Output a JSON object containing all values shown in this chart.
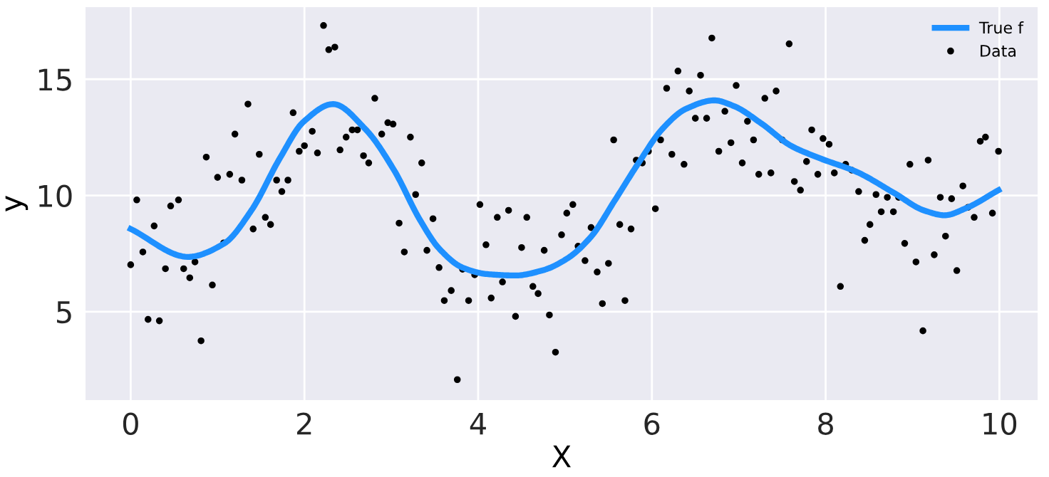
{
  "chart_data": {
    "type": "line",
    "xlabel": "X",
    "ylabel": "y",
    "xlim": [
      -0.52,
      10.44
    ],
    "ylim": [
      1.2,
      18.1
    ],
    "xticks": [
      0,
      2,
      4,
      6,
      8,
      10
    ],
    "yticks": [
      5,
      10,
      15
    ],
    "grid": true,
    "legend": "top right",
    "series": [
      {
        "name": "True f",
        "color": "#1e90ff",
        "marker": "none",
        "line_style": "solid",
        "x": [
          0,
          0.66,
          1.07,
          1.39,
          1.72,
          1.99,
          2.33,
          2.7,
          3.03,
          3.33,
          3.55,
          3.82,
          4.1,
          4.43,
          4.75,
          5.03,
          5.3,
          5.57,
          5.85,
          6.12,
          6.39,
          6.72,
          6.94,
          7.27,
          7.6,
          7.92,
          8.36,
          8.8,
          9.13,
          9.37,
          9.62,
          9.99
        ],
        "values": [
          8.56,
          7.36,
          7.92,
          9.36,
          11.62,
          13.17,
          13.93,
          12.86,
          11.1,
          8.95,
          7.72,
          6.9,
          6.62,
          6.56,
          6.79,
          7.3,
          8.23,
          9.77,
          11.42,
          12.86,
          13.72,
          14.09,
          13.85,
          13.07,
          12.14,
          11.62,
          11.01,
          10.08,
          9.36,
          9.15,
          9.46,
          10.23
        ]
      },
      {
        "name": "Data",
        "type": "scatter",
        "color": "#000000",
        "marker": "circle",
        "x": [
          0.0,
          0.07,
          0.14,
          0.2,
          0.27,
          0.33,
          0.4,
          0.46,
          0.55,
          0.61,
          0.68,
          0.74,
          0.81,
          0.87,
          0.94,
          1.0,
          1.07,
          1.14,
          1.2,
          1.28,
          1.35,
          1.41,
          1.48,
          1.55,
          1.61,
          1.68,
          1.74,
          1.81,
          1.87,
          1.94,
          2.0,
          2.09,
          2.15,
          2.22,
          2.28,
          2.35,
          2.41,
          2.48,
          2.55,
          2.61,
          2.68,
          2.74,
          2.81,
          2.89,
          2.96,
          3.02,
          3.09,
          3.15,
          3.22,
          3.28,
          3.35,
          3.41,
          3.48,
          3.55,
          3.61,
          3.69,
          3.76,
          3.82,
          3.89,
          3.96,
          4.02,
          4.09,
          4.15,
          4.22,
          4.28,
          4.35,
          4.43,
          4.5,
          4.56,
          4.63,
          4.69,
          4.76,
          4.82,
          4.89,
          4.96,
          5.02,
          5.09,
          5.15,
          5.23,
          5.3,
          5.37,
          5.43,
          5.5,
          5.56,
          5.63,
          5.69,
          5.76,
          5.82,
          5.89,
          5.96,
          6.04,
          6.1,
          6.17,
          6.23,
          6.3,
          6.37,
          6.43,
          6.5,
          6.56,
          6.63,
          6.69,
          6.77,
          6.84,
          6.91,
          6.97,
          7.04,
          7.1,
          7.17,
          7.23,
          7.3,
          7.37,
          7.43,
          7.5,
          7.58,
          7.64,
          7.71,
          7.78,
          7.84,
          7.91,
          7.97,
          8.04,
          8.1,
          8.17,
          8.23,
          8.3,
          8.38,
          8.45,
          8.51,
          8.58,
          8.64,
          8.71,
          8.78,
          8.84,
          8.91,
          8.97,
          9.04,
          9.12,
          9.18,
          9.25,
          9.32,
          9.38,
          9.45,
          9.51,
          9.58,
          9.64,
          9.71,
          9.78,
          9.84,
          9.92,
          9.99
        ],
        "values": [
          7.02,
          9.81,
          7.57,
          4.67,
          8.69,
          4.61,
          6.85,
          9.55,
          9.81,
          6.85,
          6.46,
          7.14,
          3.75,
          11.65,
          6.15,
          10.78,
          7.96,
          10.91,
          12.64,
          10.66,
          13.93,
          8.56,
          11.77,
          9.06,
          8.75,
          10.66,
          10.17,
          10.66,
          13.56,
          11.9,
          12.14,
          12.76,
          11.83,
          17.31,
          16.27,
          16.38,
          11.96,
          12.51,
          12.82,
          12.82,
          11.71,
          11.4,
          14.18,
          12.64,
          13.13,
          13.07,
          8.81,
          7.57,
          12.51,
          10.04,
          11.4,
          7.64,
          9.0,
          6.9,
          5.48,
          5.91,
          2.08,
          6.83,
          5.48,
          6.59,
          9.61,
          7.88,
          5.59,
          9.06,
          6.28,
          9.36,
          4.8,
          7.76,
          9.06,
          6.09,
          5.78,
          7.64,
          4.86,
          3.26,
          8.31,
          9.24,
          9.61,
          7.82,
          7.2,
          8.62,
          6.71,
          5.35,
          7.08,
          12.39,
          8.75,
          5.48,
          8.56,
          11.52,
          11.4,
          11.9,
          9.43,
          12.39,
          14.61,
          11.77,
          15.35,
          11.34,
          14.49,
          13.32,
          15.17,
          13.32,
          16.77,
          11.9,
          13.62,
          12.27,
          14.73,
          11.4,
          13.19,
          12.39,
          10.91,
          14.18,
          10.97,
          14.49,
          12.39,
          16.52,
          10.6,
          10.23,
          11.46,
          12.82,
          10.91,
          12.45,
          12.2,
          10.97,
          6.09,
          11.34,
          11.09,
          10.17,
          8.07,
          8.75,
          10.04,
          9.3,
          9.92,
          9.3,
          9.92,
          7.94,
          11.34,
          7.14,
          4.18,
          11.52,
          7.45,
          9.92,
          8.25,
          9.86,
          6.77,
          10.41,
          9.49,
          9.06,
          12.33,
          12.51,
          9.24,
          11.9
        ]
      }
    ]
  }
}
